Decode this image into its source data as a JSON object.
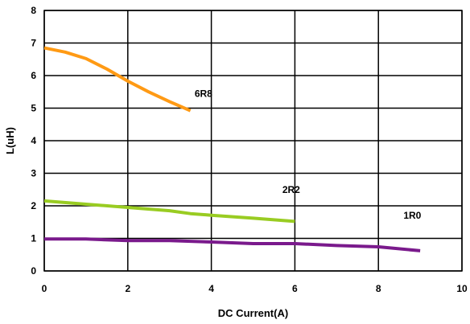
{
  "chart_data": {
    "type": "line",
    "title": "",
    "xlabel": "DC Current(A)",
    "ylabel": "L(uH)",
    "xlim": [
      0,
      10
    ],
    "ylim": [
      0,
      8
    ],
    "xticks": [
      0,
      2,
      4,
      6,
      8,
      10
    ],
    "yticks": [
      0,
      1,
      2,
      3,
      4,
      5,
      6,
      7,
      8
    ],
    "grid": true,
    "legend": "none",
    "series": [
      {
        "name": "6R8",
        "color": "#ff9a14",
        "x": [
          0,
          0.5,
          1,
          1.5,
          2,
          2.5,
          3,
          3.5
        ],
        "y": [
          6.85,
          6.72,
          6.52,
          6.2,
          5.83,
          5.5,
          5.2,
          4.92
        ],
        "label_pos": [
          3.6,
          5.45
        ]
      },
      {
        "name": "2R2",
        "color": "#99cc22",
        "x": [
          0,
          1,
          2,
          3,
          3.5,
          4,
          5,
          6
        ],
        "y": [
          2.15,
          2.05,
          1.95,
          1.85,
          1.76,
          1.71,
          1.62,
          1.52
        ],
        "label_pos": [
          5.7,
          2.5
        ]
      },
      {
        "name": "1R0",
        "color": "#7a1a8c",
        "x": [
          0,
          1,
          2,
          3,
          4,
          5,
          6,
          7,
          8,
          9
        ],
        "y": [
          0.98,
          0.98,
          0.93,
          0.93,
          0.89,
          0.84,
          0.84,
          0.78,
          0.74,
          0.62
        ],
        "label_pos": [
          8.6,
          1.7
        ]
      }
    ]
  }
}
